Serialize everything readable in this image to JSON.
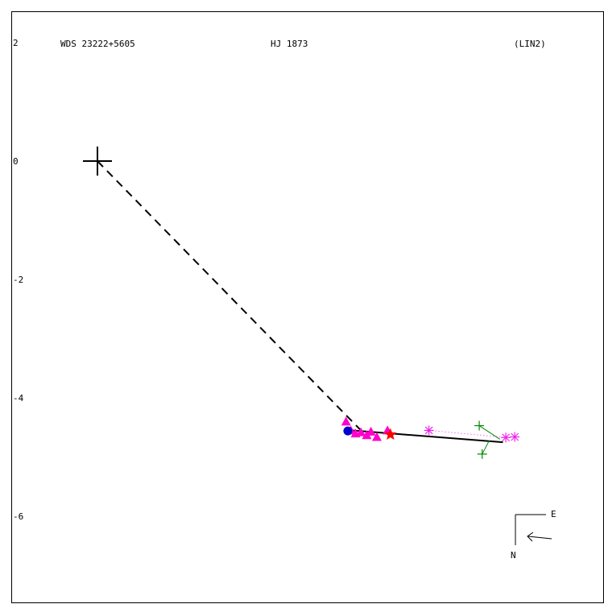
{
  "header": {
    "left": "WDS 23222+5605",
    "center": "HJ 1873",
    "right": "(LIN2)"
  },
  "compass": {
    "east": "E",
    "north": "N"
  },
  "colors": {
    "frame": "#000000",
    "primary": "#000000",
    "measure_triangle": "#ff00cc",
    "measure_asterisk": "#ee22ee",
    "green_plus": "#008800",
    "red_star": "#ff0000",
    "blue_circle": "#0000cc"
  },
  "chart_data": {
    "type": "scatter",
    "title": "",
    "xlabel": "",
    "ylabel": "",
    "xlim": [
      -1.45,
      8.55
    ],
    "ylim": [
      -7.45,
      2.55
    ],
    "y_ticks": [
      2,
      0,
      -2,
      -4,
      -6
    ],
    "primary": {
      "x": 0,
      "y": 0,
      "marker": "plus"
    },
    "orbit_line": {
      "points": [
        [
          4.3,
          -4.55
        ],
        [
          6.85,
          -4.75
        ]
      ],
      "style": "solid"
    },
    "primary_to_companion": {
      "points": [
        [
          0,
          0
        ],
        [
          4.5,
          -4.6
        ]
      ],
      "style": "dashed"
    },
    "series": [
      {
        "marker": "triangle",
        "color": "#ff00cc",
        "points": [
          [
            4.2,
            -4.4
          ],
          [
            4.28,
            -4.55
          ],
          [
            4.36,
            -4.6
          ],
          [
            4.45,
            -4.58
          ],
          [
            4.55,
            -4.63
          ],
          [
            4.62,
            -4.57
          ],
          [
            4.72,
            -4.66
          ],
          [
            4.9,
            -4.55
          ]
        ]
      },
      {
        "marker": "asterisk",
        "color": "#ee22ee",
        "points": [
          [
            5.6,
            -4.55
          ],
          [
            6.9,
            -4.67
          ],
          [
            7.05,
            -4.66
          ]
        ]
      },
      {
        "marker": "plus",
        "color": "#008800",
        "points": [
          [
            6.45,
            -4.47
          ],
          [
            6.5,
            -4.95
          ]
        ]
      },
      {
        "marker": "star",
        "color": "#ff0000",
        "points": [
          [
            4.95,
            -4.62
          ]
        ]
      },
      {
        "marker": "circle",
        "color": "#0000cc",
        "points": [
          [
            4.23,
            -4.56
          ]
        ]
      }
    ],
    "residuals": [
      {
        "from": [
          6.45,
          -4.47
        ],
        "to": [
          6.8,
          -4.7
        ],
        "color": "#008800"
      },
      {
        "from": [
          6.5,
          -4.95
        ],
        "to": [
          6.62,
          -4.72
        ],
        "color": "#008800"
      },
      {
        "from": [
          5.6,
          -4.55
        ],
        "to": [
          6.9,
          -4.67
        ],
        "color": "#ee22ee",
        "style": "dotted"
      }
    ]
  }
}
